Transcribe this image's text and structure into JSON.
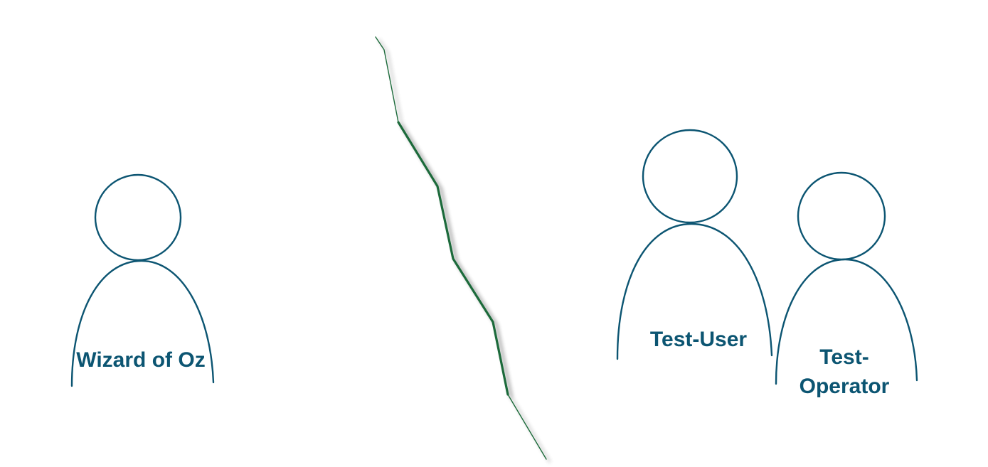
{
  "colors": {
    "figure_stroke": "#0c5572",
    "label_text": "#0c5572",
    "divider_stroke": "#1d6b3a",
    "divider_shadow": "#8a8a8a"
  },
  "figures": {
    "wizard": {
      "label": "Wizard of Oz"
    },
    "test_user": {
      "label": "Test-User"
    },
    "test_operator": {
      "label_line1": "Test-",
      "label_line2": "Operator"
    }
  }
}
